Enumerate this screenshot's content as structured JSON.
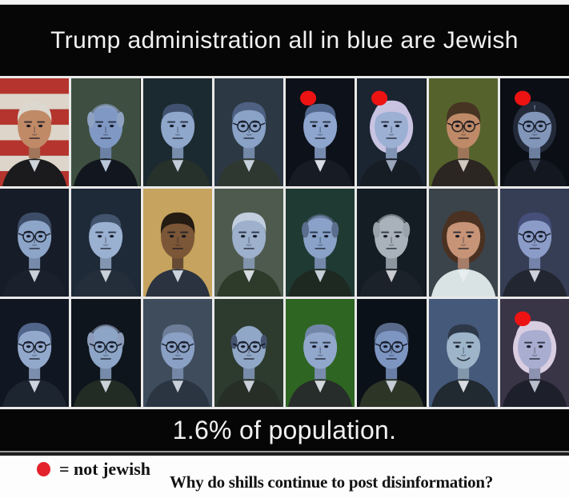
{
  "title_banner": {
    "text": "Trump administration all in blue are Jewish"
  },
  "caption_banner": {
    "text": "1.6% of population."
  },
  "legend": {
    "marker": "red-dot",
    "marker_color": "#e4222c",
    "text": "= not jewish"
  },
  "question": {
    "text": "Why do shills continue to post disinformation?"
  },
  "grid": {
    "rows": 3,
    "cols": 8,
    "dot_color": "#ee1313",
    "separator_color": "#e9e9e9",
    "cells": [
      {
        "row": 1,
        "col": 1,
        "figure": "man",
        "tint": "natural",
        "bg_style": "stripes",
        "bg": "#b5342e",
        "bg2": "#ddd5c9",
        "skin": "#c18a67",
        "hair": "#dcd8d0",
        "hair_style": "short",
        "suit": "#1b1b1d",
        "shirt": "#cfd4da",
        "glasses": false,
        "dot": false
      },
      {
        "row": 1,
        "col": 2,
        "figure": "man",
        "tint": "blue",
        "bg_style": "solid",
        "bg": "#3e4f41",
        "skin": "#8099c4",
        "hair": "#8fa2c2",
        "hair_style": "balding",
        "suit": "#12161e",
        "shirt": "#b9c6da",
        "glasses": false,
        "dot": false
      },
      {
        "row": 1,
        "col": 3,
        "figure": "man",
        "tint": "blue",
        "bg_style": "solid",
        "bg": "#1b2a30",
        "skin": "#8fa7cb",
        "hair": "#3f516e",
        "hair_style": "shortRec",
        "suit": "#26312b",
        "shirt": "#c2cdd9",
        "glasses": false,
        "dot": false
      },
      {
        "row": 1,
        "col": 4,
        "figure": "man",
        "tint": "blue",
        "bg_style": "solid",
        "bg": "#2c3945",
        "skin": "#8aa2c6",
        "hair": "#4e6183",
        "hair_style": "short",
        "suit": "#2e3830",
        "shirt": "#c6d0da",
        "glasses": true,
        "dot": false
      },
      {
        "row": 1,
        "col": 5,
        "figure": "man",
        "tint": "blue",
        "bg_style": "solid",
        "bg": "#0d1119",
        "skin": "#8ea5ce",
        "hair": "#52678d",
        "hair_style": "shortRec",
        "suit": "#171b23",
        "shirt": "#d6dde6",
        "glasses": false,
        "dot": true
      },
      {
        "row": 1,
        "col": 6,
        "figure": "woman",
        "tint": "blue",
        "bg_style": "solid",
        "bg": "#1b2531",
        "skin": "#9cb0d3",
        "hair": "#c9c3e2",
        "hair_style": "bob",
        "suit": "#171d25",
        "shirt": "#9aa6ba",
        "glasses": false,
        "dot": true
      },
      {
        "row": 1,
        "col": 7,
        "figure": "man",
        "tint": "natural",
        "bg_style": "solid",
        "bg": "#55622c",
        "skin": "#bf8a67",
        "hair": "#473423",
        "hair_style": "shortLow",
        "suit": "#2b2621",
        "shirt": "#cfc9bf",
        "glasses": true,
        "dot": false
      },
      {
        "row": 1,
        "col": 8,
        "figure": "woman",
        "tint": "blue",
        "bg_style": "solid",
        "bg": "#0b0f15",
        "skin": "#8296ba",
        "hair": "#232a3a",
        "hair_style": "partedLong",
        "suit": "#121720",
        "shirt": "#3a4252",
        "glasses": true,
        "dot": true
      },
      {
        "row": 2,
        "col": 1,
        "figure": "man",
        "tint": "blue",
        "bg_style": "solid",
        "bg": "#161c28",
        "skin": "#8da5c8",
        "hair": "#3d4d68",
        "hair_style": "short",
        "suit": "#1a202c",
        "shirt": "#c9d0d8",
        "glasses": true,
        "dot": false
      },
      {
        "row": 2,
        "col": 2,
        "figure": "man",
        "tint": "blue",
        "bg_style": "solid",
        "bg": "#1e2a38",
        "skin": "#9bb1d1",
        "hair": "#41536d",
        "hair_style": "shortRec",
        "suit": "#242e3a",
        "shirt": "#c9d0d8",
        "glasses": false,
        "dot": false
      },
      {
        "row": 2,
        "col": 3,
        "figure": "man",
        "tint": "natural",
        "bg_style": "solid",
        "bg": "#c6a35e",
        "skin": "#7b5637",
        "hair": "#241b12",
        "hair_style": "shortLow",
        "suit": "#2b3340",
        "shirt": "#cdd3da",
        "glasses": false,
        "dot": false
      },
      {
        "row": 2,
        "col": 4,
        "figure": "man",
        "tint": "blue",
        "bg_style": "solid",
        "bg": "#4e5a4e",
        "skin": "#9db0cc",
        "hair": "#c2cede",
        "hair_style": "short",
        "suit": "#2e3a2a",
        "shirt": "#d5dbe0",
        "glasses": false,
        "dot": false
      },
      {
        "row": 2,
        "col": 5,
        "figure": "man",
        "tint": "blue",
        "bg_style": "solid",
        "bg": "#1f3a33",
        "skin": "#8aa2c8",
        "hair": "#5c6e8e",
        "hair_style": "balding",
        "suit": "#1e2922",
        "shirt": "#c5cdd8",
        "glasses": false,
        "dot": false
      },
      {
        "row": 2,
        "col": 6,
        "figure": "man",
        "tint": "gray",
        "bg_style": "solid",
        "bg": "#141c24",
        "skin": "#a9b2ba",
        "hair": "#99a3ab",
        "hair_style": "balding",
        "suit": "#1c222a",
        "shirt": "#c9ccd0",
        "glasses": false,
        "dot": false
      },
      {
        "row": 2,
        "col": 7,
        "figure": "woman",
        "tint": "natural",
        "bg_style": "solid",
        "bg": "#3b434b",
        "skin": "#c79478",
        "hair": "#4b3121",
        "hair_style": "bob",
        "suit": "#d9e3e3",
        "shirt": "#e8eef0",
        "glasses": false,
        "dot": false
      },
      {
        "row": 2,
        "col": 8,
        "figure": "man",
        "tint": "blue",
        "bg_style": "solid",
        "bg": "#363e55",
        "skin": "#8c9cc8",
        "hair": "#454f79",
        "hair_style": "short",
        "suit": "#222631",
        "shirt": "#cdd2dc",
        "glasses": true,
        "dot": false
      },
      {
        "row": 3,
        "col": 1,
        "figure": "man",
        "tint": "blue",
        "bg_style": "solid",
        "bg": "#111722",
        "skin": "#93a9cc",
        "hair": "#51648a",
        "hair_style": "short",
        "suit": "#1d2531",
        "shirt": "#ccd3dc",
        "glasses": true,
        "dot": false
      },
      {
        "row": 3,
        "col": 2,
        "figure": "man",
        "tint": "blue",
        "bg_style": "solid",
        "bg": "#0f151d",
        "skin": "#8da5c7",
        "hair": "#8c9cba",
        "hair_style": "balding",
        "suit": "#222c24",
        "shirt": "#ccd2da",
        "glasses": true,
        "dot": false
      },
      {
        "row": 3,
        "col": 3,
        "figure": "man",
        "tint": "blue",
        "bg_style": "solid",
        "bg": "#3e4c5c",
        "skin": "#8aa0c4",
        "hair": "#6d7d97",
        "hair_style": "shortRec",
        "suit": "#2b3542",
        "shirt": "#c8cfd8",
        "glasses": true,
        "dot": false
      },
      {
        "row": 3,
        "col": 4,
        "figure": "man",
        "tint": "blue",
        "bg_style": "solid",
        "bg": "#2d3b2f",
        "skin": "#91a7c7",
        "hair": "#44536e",
        "hair_style": "baldTop",
        "suit": "#262e26",
        "shirt": "#c8cfd8",
        "glasses": true,
        "dot": false
      },
      {
        "row": 3,
        "col": 5,
        "figure": "man",
        "tint": "blue",
        "bg_style": "solid",
        "bg": "#2e6522",
        "skin": "#91a7cb",
        "hair": "#7287a7",
        "hair_style": "shortRec",
        "suit": "#272d2b",
        "shirt": "#d2d8de",
        "glasses": false,
        "dot": false
      },
      {
        "row": 3,
        "col": 6,
        "figure": "man",
        "tint": "blue",
        "bg_style": "solid",
        "bg": "#0b1118",
        "skin": "#7d95c1",
        "hair": "#59698a",
        "hair_style": "short",
        "suit": "#2d3527",
        "shirt": "#c6cdd6",
        "glasses": true,
        "dot": false
      },
      {
        "row": 3,
        "col": 7,
        "figure": "man",
        "tint": "blue",
        "bg_style": "solid",
        "bg": "#45597a",
        "skin": "#9db4c9",
        "hair": "#2d3849",
        "hair_style": "shortRec",
        "suit": "#212931",
        "shirt": "#d8dce0",
        "glasses": false,
        "smile": true,
        "dot": false
      },
      {
        "row": 3,
        "col": 8,
        "figure": "woman",
        "tint": "blue",
        "bg_style": "solid",
        "bg": "#3a3447",
        "skin": "#a9aed1",
        "hair": "#d9cde1",
        "hair_style": "sideSwept",
        "suit": "#1d202b",
        "shirt": "#b9becc",
        "glasses": false,
        "dot": true
      }
    ]
  }
}
